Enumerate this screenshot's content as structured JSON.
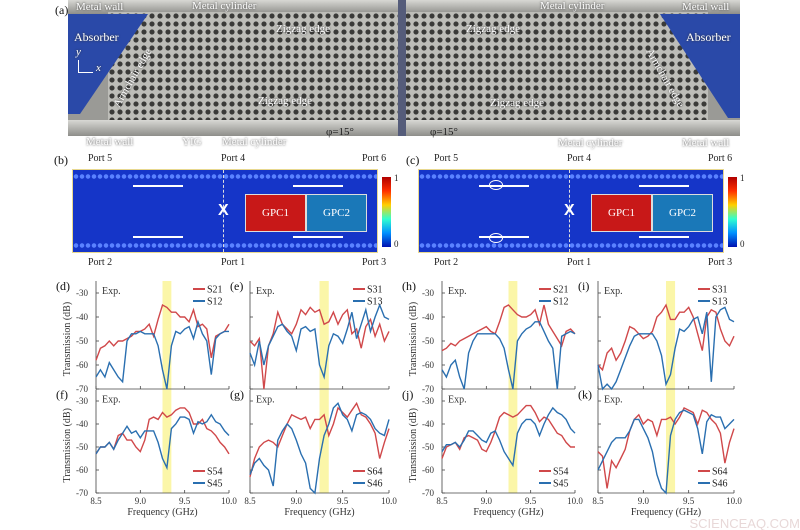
{
  "panel_a": {
    "letter": "(a)",
    "labels": {
      "metal_wall_tl": "Metal wall",
      "metal_cylinder_tl": "Metal cylinder",
      "zigzag_tl": "Zigzag edge",
      "absorber_l": "Absorber",
      "axis_y": "y",
      "axis_x": "x",
      "armchair_l": "Armchair edge",
      "zigzag_bl": "Zigzag edge",
      "metal_wall_bl": "Metal wall",
      "yig": "YIG",
      "metal_cylinder_bl": "Metal cylinder",
      "phi_l": "φ=15°",
      "phi_r": "φ=15°",
      "metal_cylinder_tr": "Metal cylinder",
      "metal_wall_tr": "Metal wall",
      "zigzag_tr": "Zigzag edge",
      "absorber_r": "Absorber",
      "armchair_r": "Armchair edge",
      "zigzag_br": "Zigzag edge",
      "metal_cylinder_br": "Metal cylinder",
      "metal_wall_br": "Metal wall"
    },
    "colors": {
      "absorber": "#2a49a8",
      "metal": "#9a9a96"
    }
  },
  "field_maps": [
    {
      "letter": "(b)",
      "ports": [
        "Port 5",
        "Port 4",
        "Port 6",
        "Port 2",
        "Port 1",
        "Port 3"
      ],
      "gpc1": "GPC1",
      "gpc2": "GPC2",
      "colorbar_max": "1",
      "colorbar_min": "0",
      "vortex": false
    },
    {
      "letter": "(c)",
      "ports": [
        "Port 5",
        "Port 4",
        "Port 6",
        "Port 2",
        "Port 1",
        "Port 3"
      ],
      "gpc1": "GPC1",
      "gpc2": "GPC2",
      "colorbar_max": "1",
      "colorbar_min": "0",
      "vortex": true
    }
  ],
  "watermark": "SCIENCEAQ.COM",
  "chart_data": [
    {
      "panel": "(d)",
      "type": "line",
      "annotation": "Exp.",
      "ylabel": "Transmission (dB)",
      "xlabel": "",
      "xlim": [
        8.5,
        10.0
      ],
      "ylim": [
        -70,
        -25
      ],
      "xticks": [
        "8.5",
        "9.0",
        "9.5",
        "10.0"
      ],
      "yticks": [
        "-30",
        "-40",
        "-50",
        "-60",
        "-70"
      ],
      "highlight": [
        9.25,
        9.35
      ],
      "legend": "top-right",
      "series": [
        {
          "name": "S21",
          "color": "#d0484a",
          "values": [
            -58,
            -53,
            -52,
            -50,
            -52,
            -50,
            -50,
            -49,
            -48,
            -46,
            -46,
            -45,
            -43,
            -48,
            -41,
            -35,
            -36,
            -38,
            -38,
            -40,
            -40,
            -42,
            -37,
            -44,
            -43,
            -45,
            -57,
            -48,
            -47,
            -46,
            -43
          ]
        },
        {
          "name": "S12",
          "color": "#2a6fb0",
          "values": [
            -65,
            -62,
            -65,
            -59,
            -62,
            -65,
            -67,
            -50,
            -47,
            -47,
            -46,
            -47,
            -47,
            -47,
            -52,
            -62,
            -70,
            -52,
            -46,
            -47,
            -45,
            -44,
            -49,
            -42,
            -47,
            -50,
            -64,
            -49,
            -47,
            -46,
            -46
          ]
        }
      ]
    },
    {
      "panel": "(e)",
      "type": "line",
      "annotation": "Exp.",
      "ylabel": "",
      "xlabel": "",
      "xlim": [
        8.5,
        10.0
      ],
      "ylim": [
        -70,
        -25
      ],
      "xticks": [
        "8.5",
        "9.0",
        "9.5",
        "10.0"
      ],
      "yticks": [],
      "highlight": [
        9.25,
        9.35
      ],
      "legend": "top-right",
      "series": [
        {
          "name": "S31",
          "color": "#d0484a",
          "values": [
            -50,
            -52,
            -49,
            -70,
            -52,
            -47,
            -38,
            -43,
            -45,
            -47,
            -43,
            -37,
            -39,
            -36,
            -38,
            -37,
            -43,
            -42,
            -38,
            -43,
            -39,
            -37,
            -47,
            -45,
            -53,
            -44,
            -41,
            -48,
            -43,
            -50,
            -46
          ]
        },
        {
          "name": "S13",
          "color": "#2a6fb0",
          "values": [
            -55,
            -60,
            -50,
            -60,
            -52,
            -48,
            -44,
            -43,
            -46,
            -48,
            -54,
            -45,
            -44,
            -46,
            -45,
            -60,
            -65,
            -52,
            -47,
            -48,
            -51,
            -45,
            -38,
            -49,
            -43,
            -37,
            -46,
            -40,
            -35,
            -40,
            -41
          ]
        }
      ]
    },
    {
      "panel": "(f)",
      "type": "line",
      "annotation": "Exp.",
      "ylabel": "Transmission (dB)",
      "xlabel": "Frequency (GHz)",
      "xlim": [
        8.5,
        10.0
      ],
      "ylim": [
        -70,
        -25
      ],
      "xticks": [
        "8.5",
        "9.0",
        "9.5",
        "10.0"
      ],
      "yticks": [
        "-30",
        "-40",
        "-50",
        "-60",
        "-70"
      ],
      "highlight": [
        9.25,
        9.35
      ],
      "legend": "bottom-right",
      "series": [
        {
          "name": "S54",
          "color": "#d0484a",
          "values": [
            -53,
            -50,
            -50,
            -48,
            -51,
            -45,
            -44,
            -47,
            -47,
            -50,
            -52,
            -47,
            -38,
            -37,
            -38,
            -35,
            -37,
            -36,
            -34,
            -33,
            -33,
            -35,
            -40,
            -40,
            -38,
            -42,
            -43,
            -45,
            -48,
            -50,
            -53
          ]
        },
        {
          "name": "S45",
          "color": "#2a6fb0",
          "values": [
            -53,
            -50,
            -50,
            -48,
            -51,
            -47,
            -44,
            -41,
            -44,
            -43,
            -46,
            -43,
            -43,
            -43,
            -48,
            -55,
            -59,
            -42,
            -40,
            -37,
            -37,
            -38,
            -44,
            -39,
            -40,
            -39,
            -36,
            -39,
            -40,
            -43,
            -45
          ]
        }
      ]
    },
    {
      "panel": "(g)",
      "type": "line",
      "annotation": "Exp.",
      "ylabel": "",
      "xlabel": "Frequency (GHz)",
      "xlim": [
        8.5,
        10.0
      ],
      "ylim": [
        -70,
        -25
      ],
      "xticks": [
        "8.5",
        "9.0",
        "9.5",
        "10.0"
      ],
      "yticks": [],
      "highlight": [
        9.25,
        9.35
      ],
      "legend": "bottom-right",
      "series": [
        {
          "name": "S64",
          "color": "#d0484a",
          "values": [
            -63,
            -55,
            -50,
            -48,
            -47,
            -48,
            -50,
            -45,
            -40,
            -36,
            -37,
            -38,
            -37,
            -42,
            -38,
            -38,
            -36,
            -45,
            -40,
            -33,
            -35,
            -37,
            -34,
            -31,
            -36,
            -37,
            -40,
            -44,
            -55,
            -48,
            -42
          ]
        },
        {
          "name": "S46",
          "color": "#2a6fb0",
          "values": [
            -62,
            -57,
            -55,
            -58,
            -60,
            -67,
            -47,
            -43,
            -40,
            -42,
            -47,
            -53,
            -57,
            -68,
            -70,
            -55,
            -45,
            -40,
            -33,
            -31,
            -36,
            -38,
            -43,
            -36,
            -35,
            -36,
            -38,
            -42,
            -44,
            -45,
            -38
          ]
        }
      ]
    },
    {
      "panel": "(h)",
      "type": "line",
      "annotation": "Exp.",
      "ylabel": "Transmission (dB)",
      "xlabel": "",
      "xlim": [
        8.5,
        10.0
      ],
      "ylim": [
        -70,
        -25
      ],
      "xticks": [
        "8.5",
        "9.0",
        "9.5",
        "10.0"
      ],
      "yticks": [
        "-30",
        "-40",
        "-50",
        "-60",
        "-70"
      ],
      "highlight": [
        9.25,
        9.35
      ],
      "legend": "top-right",
      "series": [
        {
          "name": "S21",
          "color": "#d0484a",
          "values": [
            -54,
            -53,
            -51,
            -52,
            -50,
            -49,
            -48,
            -47,
            -46,
            -45,
            -44,
            -46,
            -47,
            -42,
            -36,
            -35,
            -37,
            -39,
            -40,
            -40,
            -39,
            -37,
            -43,
            -35,
            -43,
            -46,
            -49,
            -52,
            -46,
            -45,
            -47
          ]
        },
        {
          "name": "S12",
          "color": "#2a6fb0",
          "values": [
            -62,
            -65,
            -60,
            -58,
            -65,
            -70,
            -55,
            -50,
            -47,
            -47,
            -47,
            -47,
            -47,
            -49,
            -53,
            -62,
            -70,
            -50,
            -47,
            -45,
            -44,
            -42,
            -42,
            -46,
            -50,
            -53,
            -70,
            -48,
            -47,
            -46,
            -47
          ]
        }
      ]
    },
    {
      "panel": "(i)",
      "type": "line",
      "annotation": "Exp.",
      "ylabel": "",
      "xlabel": "",
      "xlim": [
        8.5,
        10.0
      ],
      "ylim": [
        -70,
        -25
      ],
      "xticks": [
        "8.5",
        "9.0",
        "9.5",
        "10.0"
      ],
      "yticks": [],
      "highlight": [
        9.25,
        9.35
      ],
      "legend": "top-right",
      "series": [
        {
          "name": "S31",
          "color": "#d0484a",
          "values": [
            -60,
            -62,
            -55,
            -53,
            -58,
            -55,
            -50,
            -44,
            -45,
            -47,
            -49,
            -48,
            -46,
            -40,
            -38,
            -35,
            -41,
            -41,
            -38,
            -38,
            -36,
            -40,
            -47,
            -54,
            -40,
            -37,
            -38,
            -45,
            -50,
            -52,
            -48
          ]
        },
        {
          "name": "S13",
          "color": "#2a6fb0",
          "values": [
            -60,
            -70,
            -68,
            -70,
            -67,
            -62,
            -57,
            -52,
            -48,
            -47,
            -47,
            -47,
            -47,
            -50,
            -56,
            -68,
            -64,
            -53,
            -45,
            -46,
            -44,
            -41,
            -40,
            -47,
            -38,
            -67,
            -40,
            -37,
            -36,
            -41,
            -42
          ]
        }
      ]
    },
    {
      "panel": "(j)",
      "type": "line",
      "annotation": "Exp.",
      "ylabel": "Transmission (dB)",
      "xlabel": "Frequency (GHz)",
      "xlim": [
        8.5,
        10.0
      ],
      "ylim": [
        -70,
        -25
      ],
      "xticks": [
        "8.5",
        "9.0",
        "9.5",
        "10.0"
      ],
      "yticks": [
        "-30",
        "-40",
        "-50",
        "-60",
        "-70"
      ],
      "highlight": [
        9.25,
        9.35
      ],
      "legend": "bottom-right",
      "series": [
        {
          "name": "S54",
          "color": "#d0484a",
          "values": [
            -55,
            -50,
            -49,
            -48,
            -51,
            -46,
            -45,
            -46,
            -47,
            -51,
            -52,
            -48,
            -43,
            -37,
            -35,
            -36,
            -37,
            -36,
            -34,
            -32,
            -32,
            -35,
            -39,
            -37,
            -38,
            -41,
            -44,
            -45,
            -48,
            -50,
            -50
          ]
        },
        {
          "name": "S45",
          "color": "#2a6fb0",
          "values": [
            -52,
            -49,
            -49,
            -48,
            -50,
            -47,
            -43,
            -43,
            -45,
            -47,
            -48,
            -44,
            -43,
            -47,
            -52,
            -55,
            -58,
            -44,
            -40,
            -38,
            -38,
            -40,
            -45,
            -40,
            -36,
            -33,
            -35,
            -36,
            -38,
            -42,
            -44
          ]
        }
      ]
    },
    {
      "panel": "(k)",
      "type": "line",
      "annotation": "Exp.",
      "ylabel": "",
      "xlabel": "Frequency (GHz)",
      "xlim": [
        8.5,
        10.0
      ],
      "ylim": [
        -70,
        -25
      ],
      "xticks": [
        "8.5",
        "9.0",
        "9.5",
        "10.0"
      ],
      "yticks": [],
      "highlight": [
        9.25,
        9.35
      ],
      "legend": "bottom-right",
      "series": [
        {
          "name": "S64",
          "color": "#d0484a",
          "values": [
            -52,
            -54,
            -68,
            -56,
            -59,
            -55,
            -51,
            -43,
            -38,
            -36,
            -40,
            -38,
            -39,
            -45,
            -38,
            -38,
            -37,
            -40,
            -37,
            -33,
            -34,
            -35,
            -40,
            -34,
            -35,
            -38,
            -40,
            -44,
            -57,
            -48,
            -42
          ]
        },
        {
          "name": "S46",
          "color": "#2a6fb0",
          "values": [
            -60,
            -56,
            -52,
            -48,
            -46,
            -46,
            -46,
            -43,
            -38,
            -38,
            -42,
            -46,
            -52,
            -62,
            -68,
            -70,
            -45,
            -38,
            -35,
            -34,
            -35,
            -36,
            -42,
            -53,
            -39,
            -36,
            -37,
            -37,
            -42,
            -40,
            -38
          ]
        }
      ]
    }
  ]
}
